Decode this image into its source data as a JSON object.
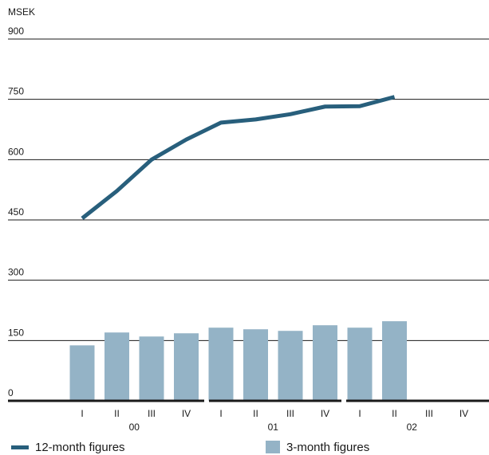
{
  "chart_data": {
    "type": "bar",
    "unit_label": "MSEK",
    "ylim": [
      0,
      900
    ],
    "yticks": [
      0,
      150,
      300,
      450,
      600,
      750,
      900
    ],
    "grid": true,
    "categories": [
      "I",
      "II",
      "III",
      "IV",
      "I",
      "II",
      "III",
      "IV",
      "I",
      "II",
      "III",
      "IV"
    ],
    "years": [
      {
        "label": "00",
        "start": 0,
        "end": 3
      },
      {
        "label": "01",
        "start": 4,
        "end": 7
      },
      {
        "label": "02",
        "start": 8,
        "end": 11
      }
    ],
    "series": [
      {
        "name": "3-month figures",
        "type": "bar",
        "color": "#94b3c6",
        "values": [
          138,
          170,
          160,
          168,
          182,
          178,
          174,
          188,
          182,
          198,
          null,
          null
        ]
      },
      {
        "name": "12-month figures",
        "type": "line",
        "color": "#285f7c",
        "values": [
          454,
          522,
          600,
          650,
          692,
          700,
          713,
          732,
          733,
          756,
          null,
          null
        ]
      }
    ],
    "legend_position": "bottom"
  }
}
